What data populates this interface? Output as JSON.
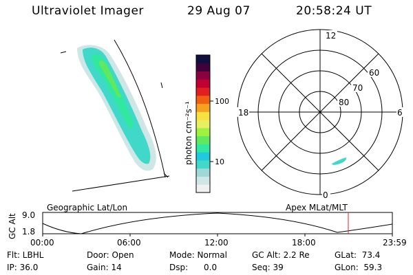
{
  "header": {
    "instrument": "Ultraviolet Imager",
    "date": "29 Aug 07",
    "time": "20:58:24 UT"
  },
  "colorbar": {
    "unit_label": "photon cm⁻²s⁻¹",
    "tick_100": "100",
    "tick_10": "10",
    "colors": [
      "#f0f0f0",
      "#cfe6e6",
      "#a0d8d8",
      "#40d8c8",
      "#20c8e0",
      "#30e8a0",
      "#60e860",
      "#a0f040",
      "#e8f060",
      "#f8e040",
      "#f8a020",
      "#f06010",
      "#e02020",
      "#c00030",
      "#8a0040",
      "#40003a",
      "#101040"
    ]
  },
  "polar_plot": {
    "mlt_labels": [
      "12",
      "6",
      "0",
      "18"
    ],
    "lat_labels": [
      "60",
      "70",
      "80"
    ]
  },
  "timeline": {
    "left_title": "Geographic Lat/Lon",
    "right_title": "Apex MLat/MLT",
    "y_axis_label": "GC Alt",
    "y_ticks": [
      "9.0",
      "1.8"
    ],
    "x_ticks": [
      "00:00",
      "06:00",
      "12:00",
      "18:00",
      "23:59"
    ],
    "marker_color": "#e02020"
  },
  "info": {
    "flt": "Flt: LBHL",
    "ip": "IP: 36.0",
    "door": "Door: Open",
    "gain": "Gain: 14",
    "mode": "Mode: Normal",
    "dsp": "Dsp:      0.0",
    "gc_alt": "GC Alt: 2.2 Re",
    "seq": "Seq: 39",
    "glat": "GLat:  73.4",
    "glon": "GLon:  59.3"
  }
}
